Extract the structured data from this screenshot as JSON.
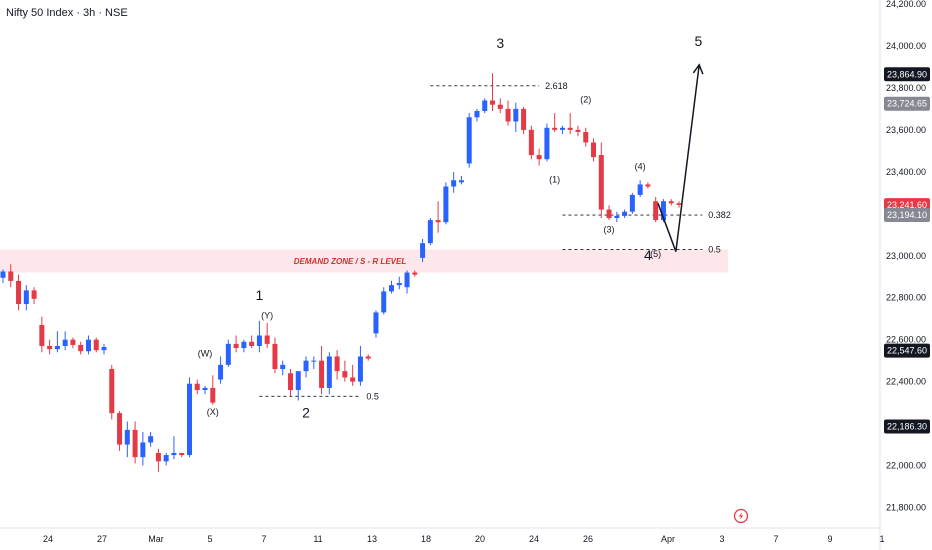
{
  "title": "Nifty 50 Index · 3h · NSE",
  "colors": {
    "up": "#2962ff",
    "down": "#e53945",
    "zone_fill": "#fde7ea",
    "zone_text": "#d32f2f",
    "line": "#131722",
    "tag_dark": "#131722",
    "tag_grey": "#868993",
    "tag_red": "#e53945",
    "logo": "#e53945"
  },
  "icons": {
    "logo": "lightning-badge-icon"
  },
  "chart_data": {
    "type": "candlestick",
    "title": "Nifty 50 Index · 3h · NSE",
    "ylim": [
      21750,
      24200
    ],
    "y_ticks": [
      {
        "value": 24200,
        "label": "24,200.00"
      },
      {
        "value": 24000,
        "label": "24,000.00"
      },
      {
        "value": 23800,
        "label": "23,800.00"
      },
      {
        "value": 23600,
        "label": "23,600.00"
      },
      {
        "value": 23400,
        "label": "23,400.00"
      },
      {
        "value": 23000,
        "label": "23,000.00"
      },
      {
        "value": 22800,
        "label": "22,800.00"
      },
      {
        "value": 22600,
        "label": "22,600.00"
      },
      {
        "value": 22400,
        "label": "22,400.00"
      },
      {
        "value": 22000,
        "label": "22,000.00"
      },
      {
        "value": 21800,
        "label": "21,800.00"
      }
    ],
    "x_ticks": [
      "24",
      "27",
      "Mar",
      "5",
      "7",
      "11",
      "13",
      "18",
      "20",
      "24",
      "26",
      "Apr",
      "3",
      "7",
      "9",
      "1"
    ],
    "price_tags": [
      {
        "value": 23864.9,
        "label": "23,864.90",
        "style": "dark"
      },
      {
        "value": 23724.65,
        "label": "23,724.65",
        "style": "grey"
      },
      {
        "value": 23241.6,
        "label": "23,241.60",
        "style": "red"
      },
      {
        "value": 23194.1,
        "label": "23,194.10",
        "style": "grey"
      },
      {
        "value": 22547.6,
        "label": "22,547.60",
        "style": "dark"
      },
      {
        "value": 22186.3,
        "label": "22,186.30",
        "style": "dark"
      }
    ],
    "candles": [
      [
        22895,
        22935,
        22870,
        22925
      ],
      [
        22925,
        22960,
        22850,
        22880
      ],
      [
        22880,
        22910,
        22740,
        22770
      ],
      [
        22770,
        22860,
        22740,
        22835
      ],
      [
        22835,
        22850,
        22770,
        22795
      ],
      [
        22670,
        22710,
        22540,
        22570
      ],
      [
        22570,
        22600,
        22530,
        22555
      ],
      [
        22555,
        22640,
        22540,
        22570
      ],
      [
        22570,
        22640,
        22550,
        22600
      ],
      [
        22600,
        22610,
        22560,
        22575
      ],
      [
        22575,
        22590,
        22530,
        22545
      ],
      [
        22545,
        22620,
        22530,
        22600
      ],
      [
        22600,
        22610,
        22540,
        22550
      ],
      [
        22550,
        22580,
        22530,
        22565
      ],
      [
        22460,
        22480,
        22220,
        22250
      ],
      [
        22250,
        22260,
        22070,
        22100
      ],
      [
        22100,
        22210,
        22040,
        22170
      ],
      [
        22170,
        22210,
        22010,
        22040
      ],
      [
        22040,
        22160,
        22000,
        22110
      ],
      [
        22110,
        22160,
        22090,
        22140
      ],
      [
        22060,
        22080,
        21970,
        22020
      ],
      [
        22020,
        22060,
        22000,
        22050
      ],
      [
        22050,
        22140,
        22030,
        22060
      ],
      [
        22060,
        22060,
        22040,
        22050
      ],
      [
        22050,
        22420,
        22040,
        22390
      ],
      [
        22390,
        22410,
        22340,
        22360
      ],
      [
        22360,
        22380,
        22340,
        22370
      ],
      [
        22370,
        22430,
        22290,
        22300
      ],
      [
        22410,
        22520,
        22390,
        22480
      ],
      [
        22480,
        22600,
        22470,
        22580
      ],
      [
        22580,
        22620,
        22540,
        22560
      ],
      [
        22560,
        22600,
        22540,
        22590
      ],
      [
        22590,
        22620,
        22560,
        22570
      ],
      [
        22570,
        22690,
        22540,
        22620
      ],
      [
        22620,
        22680,
        22560,
        22580
      ],
      [
        22580,
        22610,
        22440,
        22460
      ],
      [
        22460,
        22500,
        22430,
        22480
      ],
      [
        22440,
        22460,
        22330,
        22360
      ],
      [
        22360,
        22440,
        22310,
        22450
      ],
      [
        22450,
        22520,
        22420,
        22500
      ],
      [
        22500,
        22520,
        22460,
        22500
      ],
      [
        22500,
        22570,
        22340,
        22370
      ],
      [
        22370,
        22540,
        22340,
        22520
      ],
      [
        22520,
        22550,
        22410,
        22450
      ],
      [
        22450,
        22500,
        22400,
        22420
      ],
      [
        22420,
        22480,
        22380,
        22400
      ],
      [
        22400,
        22570,
        22380,
        22520
      ],
      [
        22520,
        22530,
        22500,
        22510
      ],
      [
        22630,
        22740,
        22610,
        22730
      ],
      [
        22730,
        22850,
        22720,
        22830
      ],
      [
        22830,
        22880,
        22820,
        22860
      ],
      [
        22860,
        22900,
        22840,
        22870
      ],
      [
        22850,
        22930,
        22820,
        22920
      ],
      [
        22920,
        22930,
        22900,
        22910
      ],
      [
        22990,
        23080,
        22970,
        23060
      ],
      [
        23060,
        23180,
        23050,
        23170
      ],
      [
        23170,
        23260,
        23110,
        23160
      ],
      [
        23160,
        23350,
        23150,
        23330
      ],
      [
        23330,
        23400,
        23300,
        23360
      ],
      [
        23350,
        23380,
        23340,
        23360
      ],
      [
        23440,
        23680,
        23420,
        23660
      ],
      [
        23660,
        23700,
        23640,
        23690
      ],
      [
        23690,
        23750,
        23680,
        23740
      ],
      [
        23740,
        23870,
        23690,
        23720
      ],
      [
        23720,
        23750,
        23680,
        23700
      ],
      [
        23700,
        23740,
        23620,
        23640
      ],
      [
        23640,
        23730,
        23590,
        23700
      ],
      [
        23700,
        23710,
        23580,
        23600
      ],
      [
        23600,
        23620,
        23460,
        23480
      ],
      [
        23480,
        23510,
        23430,
        23460
      ],
      [
        23460,
        23630,
        23450,
        23610
      ],
      [
        23610,
        23680,
        23590,
        23600
      ],
      [
        23600,
        23620,
        23580,
        23610
      ],
      [
        23610,
        23680,
        23580,
        23600
      ],
      [
        23600,
        23620,
        23570,
        23590
      ],
      [
        23590,
        23610,
        23520,
        23540
      ],
      [
        23540,
        23560,
        23450,
        23470
      ],
      [
        23480,
        23540,
        23180,
        23220
      ],
      [
        23220,
        23240,
        23170,
        23180
      ],
      [
        23180,
        23210,
        23160,
        23190
      ],
      [
        23190,
        23220,
        23180,
        23210
      ],
      [
        23210,
        23300,
        23200,
        23290
      ],
      [
        23290,
        23360,
        23280,
        23340
      ],
      [
        23340,
        23350,
        23320,
        23330
      ],
      [
        23260,
        23280,
        23160,
        23170
      ],
      [
        23170,
        23270,
        23160,
        23260
      ],
      [
        23260,
        23270,
        23240,
        23250
      ],
      [
        23250,
        23260,
        23230,
        23242
      ]
    ],
    "annotations": {
      "wave_labels": [
        {
          "text": "1",
          "size": "big",
          "idx": 33,
          "price": 22790
        },
        {
          "text": "(Y)",
          "size": "small",
          "idx": 34,
          "price": 22700
        },
        {
          "text": "(W)",
          "size": "small",
          "idx": 26,
          "price": 22520
        },
        {
          "text": "(X)",
          "size": "small",
          "idx": 27,
          "price": 22240
        },
        {
          "text": "2",
          "size": "big",
          "idx": 39,
          "price": 22230
        },
        {
          "text": "3",
          "size": "big",
          "idx": 64,
          "price": 23990
        },
        {
          "text": "(2)",
          "size": "small",
          "idx": 75,
          "price": 23730
        },
        {
          "text": "(1)",
          "size": "small",
          "idx": 71,
          "price": 23350
        },
        {
          "text": "(4)",
          "size": "small",
          "idx": 82,
          "price": 23410
        },
        {
          "text": "(3)",
          "size": "small",
          "idx": 78,
          "price": 23110
        },
        {
          "text": "4",
          "size": "big",
          "idx": 83,
          "price": 22980
        },
        {
          "text": "(5)",
          "size": "small",
          "idx": 84,
          "price": 22995
        },
        {
          "text": "5",
          "size": "big",
          "idx": 89.5,
          "price": 24000
        }
      ],
      "fib_levels": [
        {
          "label": "2.618",
          "value": 23810,
          "from_idx": 55,
          "to_idx": 69
        },
        {
          "label": "0.5",
          "value": 22330,
          "from_idx": 33,
          "to_idx": 46
        },
        {
          "label": "0.382",
          "value": 23194,
          "from_idx": 72,
          "to_idx": 90
        },
        {
          "label": "0.5",
          "value": 23030,
          "from_idx": 72,
          "to_idx": 90
        }
      ],
      "zone": {
        "label": "DEMAND ZONE / S - R LEVEL",
        "high": 23030,
        "low": 22920
      },
      "projection": [
        {
          "idx": 84.3,
          "price": 23250
        },
        {
          "idx": 86.6,
          "price": 23020
        },
        {
          "idx": 89.6,
          "price": 23910
        }
      ]
    }
  }
}
